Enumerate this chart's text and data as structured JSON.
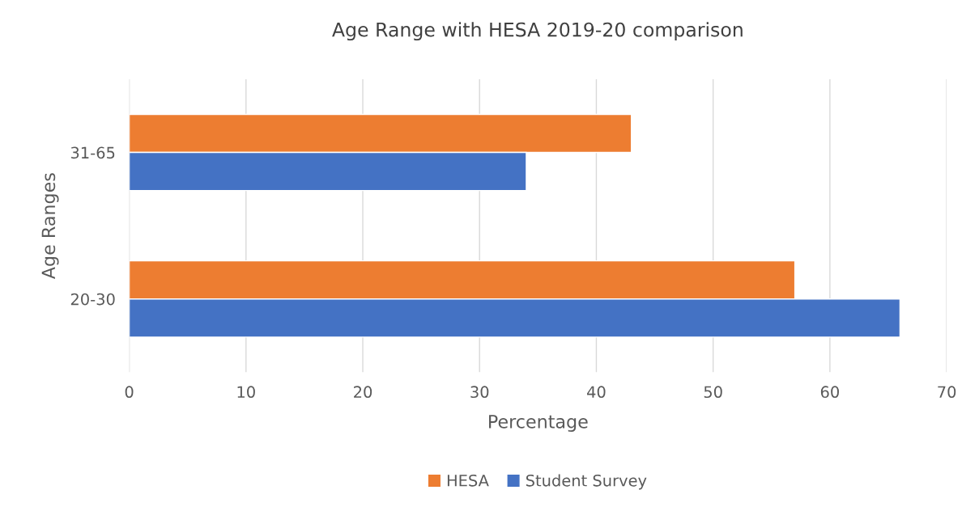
{
  "chart_data": {
    "type": "bar",
    "orientation": "horizontal",
    "title": "Age Range with HESA 2019-20 comparison",
    "xlabel": "Percentage",
    "ylabel": "Age Ranges",
    "categories": [
      "31-65",
      "20-30"
    ],
    "series": [
      {
        "name": "HESA",
        "color": "#ed7d31",
        "values": [
          43,
          57
        ]
      },
      {
        "name": "Student Survey",
        "color": "#4472c4",
        "values": [
          34,
          66
        ]
      }
    ],
    "xlim": [
      0,
      70
    ],
    "xticks": [
      0,
      10,
      20,
      30,
      40,
      50,
      60,
      70
    ],
    "grid": "x",
    "legend": "bottom"
  }
}
